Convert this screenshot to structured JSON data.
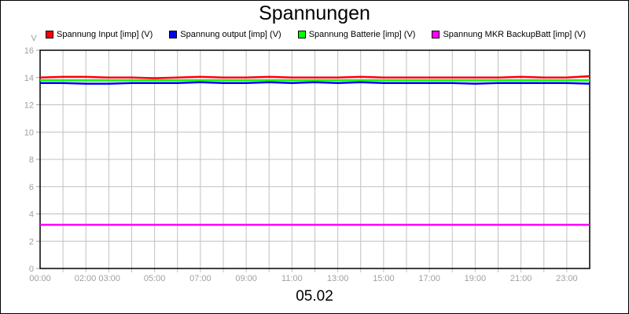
{
  "chart_data": {
    "type": "line",
    "title": "Spannungen",
    "subtitle": "05.02",
    "ylabel": "V",
    "ylim": [
      0,
      16
    ],
    "yticks": [
      "0",
      "2",
      "4",
      "6",
      "8",
      "10",
      "12",
      "14",
      "16"
    ],
    "xticks": [
      "00:00",
      "02:00 03:00",
      "05:00",
      "07:00",
      "09:00",
      "11:00",
      "13:00",
      "15:00",
      "17:00",
      "19:00",
      "21:00",
      "23:00"
    ],
    "xtick_hours": [
      0,
      2.5,
      5,
      7,
      9,
      11,
      13,
      15,
      17,
      19,
      21,
      23
    ],
    "xlim_hours": [
      0,
      24
    ],
    "grid": true,
    "legend_placement": "top",
    "x_hours": [
      0,
      1,
      2,
      3,
      4,
      5,
      6,
      7,
      8,
      9,
      10,
      11,
      12,
      13,
      14,
      15,
      16,
      17,
      18,
      19,
      20,
      21,
      22,
      23,
      24
    ],
    "series": [
      {
        "name": "Spannung Input [imp] (V)",
        "color": "#ff0000",
        "values": [
          14.0,
          14.05,
          14.05,
          14.0,
          14.0,
          13.95,
          14.0,
          14.05,
          14.0,
          14.0,
          14.05,
          14.0,
          14.0,
          14.0,
          14.05,
          14.0,
          14.0,
          14.0,
          14.0,
          14.0,
          14.0,
          14.05,
          14.0,
          14.0,
          14.1
        ]
      },
      {
        "name": "Spannung output [imp] (V)",
        "color": "#0000ff",
        "values": [
          13.6,
          13.6,
          13.55,
          13.55,
          13.6,
          13.6,
          13.6,
          13.65,
          13.6,
          13.6,
          13.65,
          13.6,
          13.65,
          13.6,
          13.65,
          13.6,
          13.6,
          13.6,
          13.6,
          13.55,
          13.6,
          13.6,
          13.6,
          13.6,
          13.55
        ]
      },
      {
        "name": "Spannung Batterie [imp] (V)",
        "color": "#00ff00",
        "values": [
          13.8,
          13.8,
          13.8,
          13.8,
          13.8,
          13.8,
          13.8,
          13.8,
          13.8,
          13.8,
          13.8,
          13.8,
          13.8,
          13.8,
          13.8,
          13.8,
          13.8,
          13.8,
          13.8,
          13.8,
          13.8,
          13.8,
          13.8,
          13.8,
          13.8
        ]
      },
      {
        "name": "Spannung MKR BackupBatt [imp] (V)",
        "color": "#ff00ff",
        "values": [
          3.2,
          3.2,
          3.2,
          3.2,
          3.2,
          3.2,
          3.2,
          3.2,
          3.2,
          3.2,
          3.2,
          3.2,
          3.2,
          3.2,
          3.2,
          3.2,
          3.2,
          3.2,
          3.2,
          3.2,
          3.2,
          3.2,
          3.2,
          3.2,
          3.2
        ]
      }
    ]
  }
}
